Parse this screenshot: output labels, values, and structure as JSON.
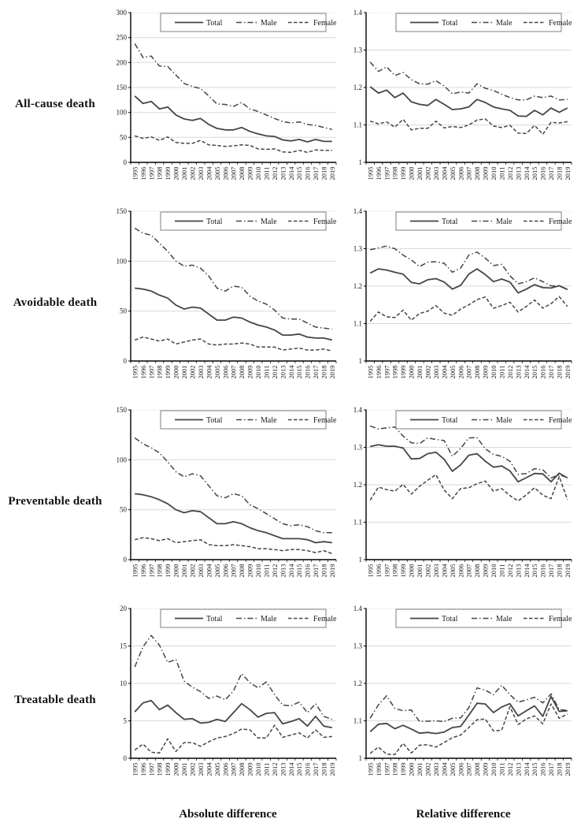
{
  "page": {
    "row_labels": [
      "All-cause death",
      "Avoidable death",
      "Preventable death",
      "Treatable death"
    ],
    "column_labels": [
      "Absolute difference",
      "Relative difference"
    ]
  },
  "style": {
    "line_color": "#454545",
    "grid_color": "#d9d9d9",
    "axis_color": "#000000",
    "legend_border": "#7f7f7f",
    "background": "#ffffff"
  },
  "legend": {
    "position": "top-center-inside",
    "items": [
      {
        "label": "Total",
        "style": "solid"
      },
      {
        "label": "Male",
        "style": "dashdot"
      },
      {
        "label": "Female",
        "style": "dashed"
      }
    ]
  },
  "years": [
    "1995",
    "1996",
    "1997",
    "1998",
    "1999",
    "2000",
    "2001",
    "2002",
    "2003",
    "2004",
    "2005",
    "2006",
    "2007",
    "2008",
    "2009",
    "2010",
    "2011",
    "2012",
    "2013",
    "2014",
    "2015",
    "2016",
    "2017",
    "2018",
    "2019"
  ],
  "chart_data": [
    {
      "id": "all-cause-absolute",
      "type": "line",
      "row": "All-cause death",
      "column": "Absolute difference",
      "grid": true,
      "ylim": [
        0,
        300
      ],
      "yticks": [
        0,
        50,
        100,
        150,
        200,
        250,
        300
      ],
      "ytick_labels": [
        "0",
        "50",
        "100",
        "150",
        "200",
        "250",
        "300"
      ],
      "series": [
        {
          "name": "Total",
          "style": "solid",
          "values": [
            133,
            118,
            122,
            107,
            111,
            95,
            87,
            84,
            88,
            76,
            68,
            65,
            65,
            70,
            62,
            57,
            53,
            52,
            45,
            43,
            46,
            41,
            46,
            42,
            42
          ]
        },
        {
          "name": "Male",
          "style": "dashdot",
          "values": [
            238,
            210,
            213,
            193,
            192,
            175,
            158,
            152,
            148,
            133,
            117,
            116,
            112,
            120,
            107,
            102,
            95,
            88,
            82,
            79,
            81,
            76,
            74,
            70,
            66
          ]
        },
        {
          "name": "Female",
          "style": "dashed",
          "values": [
            53,
            48,
            51,
            44,
            51,
            40,
            38,
            38,
            44,
            35,
            34,
            32,
            33,
            35,
            34,
            27,
            26,
            27,
            21,
            20,
            24,
            20,
            25,
            24,
            24
          ]
        }
      ]
    },
    {
      "id": "all-cause-relative",
      "type": "line",
      "row": "All-cause death",
      "column": "Relative difference",
      "grid": true,
      "ylim": [
        1,
        1.4
      ],
      "yticks": [
        1,
        1.1,
        1.2,
        1.3,
        1.4
      ],
      "ytick_labels": [
        "1",
        "1.1",
        "1.2",
        "1.3",
        "1.4"
      ],
      "series": [
        {
          "name": "Total",
          "style": "solid",
          "values": [
            1.202,
            1.185,
            1.193,
            1.173,
            1.185,
            1.162,
            1.155,
            1.152,
            1.168,
            1.155,
            1.141,
            1.143,
            1.148,
            1.168,
            1.16,
            1.148,
            1.143,
            1.139,
            1.124,
            1.123,
            1.139,
            1.127,
            1.145,
            1.134,
            1.145
          ]
        },
        {
          "name": "Male",
          "style": "dashdot",
          "values": [
            1.268,
            1.243,
            1.255,
            1.232,
            1.24,
            1.221,
            1.21,
            1.209,
            1.218,
            1.204,
            1.183,
            1.188,
            1.185,
            1.21,
            1.198,
            1.192,
            1.182,
            1.173,
            1.167,
            1.167,
            1.177,
            1.173,
            1.177,
            1.167,
            1.168
          ]
        },
        {
          "name": "Female",
          "style": "dashed",
          "values": [
            1.11,
            1.103,
            1.108,
            1.094,
            1.115,
            1.087,
            1.091,
            1.091,
            1.11,
            1.092,
            1.096,
            1.093,
            1.1,
            1.113,
            1.116,
            1.097,
            1.093,
            1.099,
            1.078,
            1.077,
            1.099,
            1.075,
            1.107,
            1.105,
            1.109
          ]
        }
      ]
    },
    {
      "id": "avoidable-absolute",
      "type": "line",
      "row": "Avoidable death",
      "column": "Absolute difference",
      "grid": true,
      "ylim": [
        0,
        150
      ],
      "yticks": [
        0,
        50,
        100,
        150
      ],
      "ytick_labels": [
        "0",
        "50",
        "100",
        "150"
      ],
      "series": [
        {
          "name": "Total",
          "style": "solid",
          "values": [
            73,
            72,
            70,
            66,
            63,
            56,
            52,
            54,
            53,
            47,
            41,
            41,
            44,
            43,
            39,
            36,
            34,
            31,
            26,
            26,
            27,
            24,
            23,
            23,
            21
          ]
        },
        {
          "name": "Male",
          "style": "dashdot",
          "values": [
            133,
            128,
            126,
            118,
            110,
            100,
            95,
            96,
            93,
            85,
            73,
            70,
            75,
            74,
            65,
            60,
            57,
            51,
            43,
            42,
            42,
            38,
            34,
            33,
            32
          ]
        },
        {
          "name": "Female",
          "style": "dashed",
          "values": [
            21,
            24,
            22,
            20,
            22,
            17,
            19,
            21,
            22,
            17,
            16,
            17,
            17,
            18,
            17,
            14,
            14,
            14,
            11,
            12,
            13,
            11,
            11,
            12,
            10
          ]
        }
      ]
    },
    {
      "id": "avoidable-relative",
      "type": "line",
      "row": "Avoidable death",
      "column": "Relative difference",
      "grid": true,
      "ylim": [
        1,
        1.4
      ],
      "yticks": [
        1,
        1.1,
        1.2,
        1.3,
        1.4
      ],
      "ytick_labels": [
        "1",
        "1.1",
        "1.2",
        "1.3",
        "1.4"
      ],
      "series": [
        {
          "name": "Total",
          "style": "solid",
          "values": [
            1.235,
            1.246,
            1.243,
            1.237,
            1.232,
            1.21,
            1.206,
            1.217,
            1.22,
            1.211,
            1.192,
            1.202,
            1.232,
            1.246,
            1.231,
            1.212,
            1.219,
            1.211,
            1.182,
            1.192,
            1.204,
            1.196,
            1.195,
            1.201,
            1.191
          ]
        },
        {
          "name": "Male",
          "style": "dashdot",
          "values": [
            1.297,
            1.302,
            1.307,
            1.3,
            1.283,
            1.27,
            1.252,
            1.264,
            1.265,
            1.261,
            1.237,
            1.248,
            1.283,
            1.291,
            1.275,
            1.255,
            1.258,
            1.228,
            1.206,
            1.212,
            1.222,
            1.212,
            1.201,
            1.2,
            1.192
          ]
        },
        {
          "name": "Female",
          "style": "dashed",
          "values": [
            1.106,
            1.131,
            1.118,
            1.116,
            1.136,
            1.109,
            1.127,
            1.133,
            1.148,
            1.128,
            1.122,
            1.139,
            1.15,
            1.164,
            1.171,
            1.141,
            1.148,
            1.157,
            1.131,
            1.146,
            1.163,
            1.141,
            1.153,
            1.172,
            1.146
          ]
        }
      ]
    },
    {
      "id": "preventable-absolute",
      "type": "line",
      "row": "Preventable death",
      "column": "Absolute difference",
      "grid": true,
      "ylim": [
        0,
        150
      ],
      "yticks": [
        0,
        50,
        100,
        150
      ],
      "ytick_labels": [
        "0",
        "50",
        "100",
        "150"
      ],
      "series": [
        {
          "name": "Total",
          "style": "solid",
          "values": [
            66,
            65,
            63,
            60,
            56,
            50,
            47,
            49,
            48,
            42,
            36,
            36,
            38,
            36,
            32,
            29,
            27,
            24,
            21,
            21,
            21,
            20,
            17,
            18,
            17
          ]
        },
        {
          "name": "Male",
          "style": "dashdot",
          "values": [
            122,
            116,
            112,
            107,
            98,
            88,
            83,
            86,
            84,
            74,
            64,
            62,
            66,
            64,
            55,
            51,
            46,
            41,
            36,
            34,
            35,
            33,
            29,
            27,
            27
          ]
        },
        {
          "name": "Female",
          "style": "dashed",
          "values": [
            20,
            22,
            21,
            19,
            21,
            17,
            18,
            19,
            20,
            15,
            14,
            14,
            15,
            14,
            13,
            11,
            11,
            10,
            9,
            10,
            10,
            9,
            7,
            9,
            6
          ]
        }
      ]
    },
    {
      "id": "preventable-relative",
      "type": "line",
      "row": "Preventable death",
      "column": "Relative difference",
      "grid": true,
      "ylim": [
        1,
        1.4
      ],
      "yticks": [
        1,
        1.1,
        1.2,
        1.3,
        1.4
      ],
      "ytick_labels": [
        "1",
        "1.1",
        "1.2",
        "1.3",
        "1.4"
      ],
      "series": [
        {
          "name": "Total",
          "style": "solid",
          "values": [
            1.302,
            1.307,
            1.303,
            1.303,
            1.298,
            1.269,
            1.27,
            1.283,
            1.287,
            1.268,
            1.236,
            1.253,
            1.279,
            1.283,
            1.263,
            1.247,
            1.25,
            1.237,
            1.208,
            1.219,
            1.23,
            1.229,
            1.208,
            1.231,
            1.218
          ]
        },
        {
          "name": "Male",
          "style": "dashdot",
          "values": [
            1.357,
            1.349,
            1.352,
            1.354,
            1.33,
            1.312,
            1.31,
            1.325,
            1.321,
            1.318,
            1.276,
            1.297,
            1.325,
            1.326,
            1.296,
            1.281,
            1.276,
            1.263,
            1.228,
            1.23,
            1.243,
            1.24,
            1.218,
            1.227,
            1.219
          ]
        },
        {
          "name": "Female",
          "style": "dashed",
          "values": [
            1.159,
            1.194,
            1.187,
            1.183,
            1.201,
            1.175,
            1.196,
            1.212,
            1.227,
            1.186,
            1.163,
            1.19,
            1.192,
            1.203,
            1.21,
            1.183,
            1.19,
            1.171,
            1.157,
            1.173,
            1.192,
            1.172,
            1.163,
            1.222,
            1.16
          ]
        }
      ]
    },
    {
      "id": "treatable-absolute",
      "type": "line",
      "row": "Treatable death",
      "column": "Absolute difference",
      "grid": true,
      "ylim": [
        0,
        20
      ],
      "yticks": [
        0,
        5,
        10,
        15,
        20
      ],
      "ytick_labels": [
        "0",
        "5",
        "10",
        "15",
        "20"
      ],
      "series": [
        {
          "name": "Total",
          "style": "solid",
          "values": [
            6.2,
            7.4,
            7.7,
            6.5,
            7.1,
            6.1,
            5.2,
            5.3,
            4.7,
            4.8,
            5.2,
            4.9,
            6.1,
            7.3,
            6.5,
            5.5,
            6.0,
            6.1,
            4.6,
            4.9,
            5.3,
            4.3,
            5.6,
            4.3,
            4.1
          ]
        },
        {
          "name": "Male",
          "style": "dashdot",
          "values": [
            12.2,
            14.9,
            16.4,
            15.1,
            12.8,
            13.2,
            10.3,
            9.5,
            8.9,
            8.0,
            8.3,
            7.8,
            9.0,
            11.3,
            10.1,
            9.4,
            10.2,
            8.5,
            7.1,
            7.0,
            7.5,
            6.1,
            7.3,
            5.6,
            5.2
          ]
        },
        {
          "name": "Female",
          "style": "dashed",
          "values": [
            1.1,
            1.9,
            0.8,
            0.7,
            2.6,
            0.9,
            2.1,
            2.1,
            1.6,
            2.2,
            2.7,
            2.9,
            3.3,
            3.9,
            3.8,
            2.7,
            2.7,
            4.4,
            2.8,
            3.1,
            3.4,
            2.7,
            3.8,
            2.8,
            2.9
          ]
        }
      ]
    },
    {
      "id": "treatable-relative",
      "type": "line",
      "row": "Treatable death",
      "column": "Relative difference",
      "grid": true,
      "ylim": [
        1,
        1.4
      ],
      "yticks": [
        1,
        1.1,
        1.2,
        1.3,
        1.4
      ],
      "ytick_labels": [
        "1",
        "1.1",
        "1.2",
        "1.3",
        "1.4"
      ],
      "series": [
        {
          "name": "Total",
          "style": "solid",
          "values": [
            1.071,
            1.091,
            1.093,
            1.079,
            1.088,
            1.078,
            1.067,
            1.069,
            1.066,
            1.07,
            1.082,
            1.085,
            1.115,
            1.147,
            1.145,
            1.122,
            1.137,
            1.146,
            1.113,
            1.127,
            1.14,
            1.112,
            1.165,
            1.125,
            1.127
          ]
        },
        {
          "name": "Male",
          "style": "dashdot",
          "values": [
            1.107,
            1.143,
            1.167,
            1.133,
            1.127,
            1.129,
            1.098,
            1.099,
            1.1,
            1.098,
            1.107,
            1.108,
            1.135,
            1.188,
            1.182,
            1.17,
            1.195,
            1.17,
            1.15,
            1.156,
            1.163,
            1.148,
            1.172,
            1.13,
            1.128
          ]
        },
        {
          "name": "Female",
          "style": "dashed",
          "values": [
            1.013,
            1.03,
            1.011,
            1.01,
            1.04,
            1.014,
            1.035,
            1.036,
            1.03,
            1.042,
            1.055,
            1.062,
            1.082,
            1.103,
            1.105,
            1.073,
            1.075,
            1.138,
            1.09,
            1.105,
            1.113,
            1.092,
            1.145,
            1.107,
            1.118
          ]
        }
      ]
    }
  ]
}
